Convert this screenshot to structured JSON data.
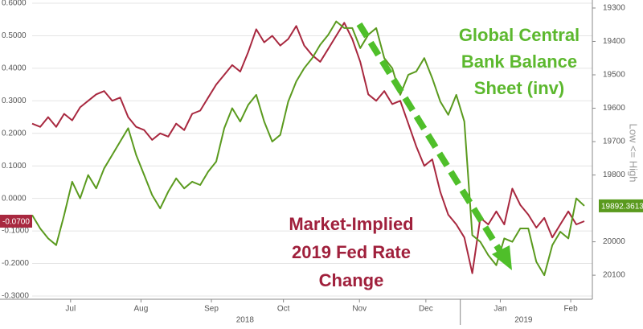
{
  "chart_data": {
    "type": "line",
    "annotations": {
      "green": [
        "Global Central",
        "Bank Balance",
        "Sheet (inv)"
      ],
      "red": [
        "Market-Implied",
        "2019 Fed Rate",
        "Change"
      ],
      "axis_note": "Low <= High"
    },
    "xlim": [
      0,
      69
    ],
    "xticks": [
      {
        "value": 4.8,
        "label": "Jul"
      },
      {
        "value": 13.6,
        "label": "Aug"
      },
      {
        "value": 22.4,
        "label": "Sep"
      },
      {
        "value": 31.4,
        "label": "Oct"
      },
      {
        "value": 40.9,
        "label": "Nov"
      },
      {
        "value": 49.2,
        "label": "Dec"
      },
      {
        "value": 58.5,
        "label": "Jan"
      },
      {
        "value": 67.3,
        "label": "Feb"
      }
    ],
    "year_ticks": [
      {
        "value": 26.6,
        "label": "2018"
      },
      {
        "value": 61.4,
        "label": "2019"
      }
    ],
    "year_boundary": 53.5,
    "ylim": [
      -0.31,
      0.61
    ],
    "yticks": [
      {
        "value": 0.6,
        "label": "0.6000"
      },
      {
        "value": 0.5,
        "label": "0.5000"
      },
      {
        "value": 0.4,
        "label": "0.4000"
      },
      {
        "value": 0.3,
        "label": "0.3000"
      },
      {
        "value": 0.2,
        "label": "0.2000"
      },
      {
        "value": 0.1,
        "label": "0.1000"
      },
      {
        "value": 0,
        "label": "0.0000"
      },
      {
        "value": -0.1,
        "label": "-0.1000"
      },
      {
        "value": -0.2,
        "label": "-0.2000"
      },
      {
        "value": -0.3,
        "label": "-0.3000"
      }
    ],
    "y2lim": [
      20172,
      19276
    ],
    "y2ticks": [
      19300,
      19400,
      19500,
      19600,
      19700,
      19800,
      20000,
      20100
    ],
    "grid": true,
    "series": [
      {
        "name": "Market-Implied 2019 Fed Rate Change",
        "color": "#a8283f",
        "axis": "y",
        "values": [
          0.23,
          0.22,
          0.25,
          0.22,
          0.26,
          0.24,
          0.28,
          0.3,
          0.32,
          0.33,
          0.3,
          0.31,
          0.25,
          0.22,
          0.21,
          0.18,
          0.2,
          0.19,
          0.23,
          0.21,
          0.26,
          0.27,
          0.31,
          0.35,
          0.38,
          0.41,
          0.39,
          0.45,
          0.52,
          0.48,
          0.5,
          0.47,
          0.49,
          0.53,
          0.47,
          0.44,
          0.42,
          0.46,
          0.5,
          0.54,
          0.49,
          0.42,
          0.32,
          0.3,
          0.33,
          0.29,
          0.3,
          0.23,
          0.16,
          0.1,
          0.12,
          0.02,
          -0.05,
          -0.08,
          -0.12,
          -0.23,
          -0.06,
          -0.08,
          -0.04,
          -0.08,
          0.03,
          -0.02,
          -0.05,
          -0.09,
          -0.06,
          -0.12,
          -0.08,
          -0.04,
          -0.08,
          -0.07
        ],
        "value_labels": [
          null,
          null,
          null,
          null,
          null,
          null,
          null,
          null,
          null,
          null,
          null,
          null,
          null,
          null,
          null,
          null,
          null,
          null,
          null,
          null,
          null,
          null,
          null,
          null,
          null,
          null,
          null,
          null,
          null,
          null,
          null,
          null,
          null,
          null,
          null,
          null,
          null,
          null,
          null,
          null,
          null,
          null,
          null,
          null,
          null,
          null,
          null,
          null,
          null,
          null,
          null,
          null,
          null,
          null,
          null,
          null,
          null,
          null,
          null,
          null,
          null,
          null,
          null,
          null,
          null,
          null,
          null,
          null,
          null,
          "-0.0700"
        ]
      },
      {
        "name": "Global Central Bank Balance Sheet (inv)",
        "color": "#5a9a1e",
        "axis": "y2",
        "values": [
          19920,
          19960,
          19990,
          20010,
          19920,
          19820,
          19870,
          19800,
          19840,
          19780,
          19740,
          19700,
          19660,
          19740,
          19800,
          19860,
          19900,
          19850,
          19810,
          19840,
          19820,
          19830,
          19790,
          19760,
          19660,
          19600,
          19640,
          19590,
          19560,
          19640,
          19700,
          19680,
          19580,
          19520,
          19480,
          19450,
          19410,
          19380,
          19340,
          19360,
          19360,
          19420,
          19380,
          19360,
          19450,
          19480,
          19560,
          19500,
          19490,
          19450,
          19510,
          19580,
          19620,
          19560,
          19640,
          19980,
          20000,
          20040,
          20070,
          19990,
          20000,
          19960,
          19960,
          20060,
          20100,
          20010,
          19970,
          19990,
          19870,
          19892.3613
        ]
      }
    ]
  }
}
